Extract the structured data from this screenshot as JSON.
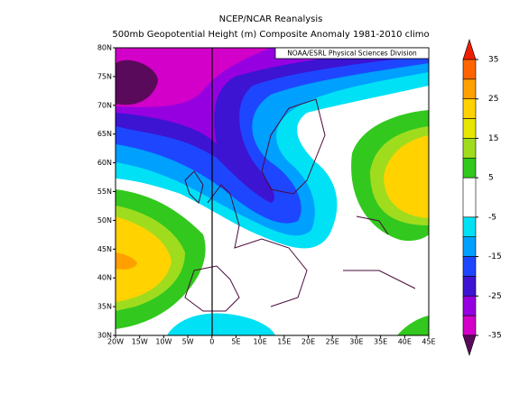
{
  "header": {
    "title": "NCEP/NCAR Reanalysis",
    "subtitle": "500mb Geopotential Height (m) Composite Anomaly 1981-2010 climo"
  },
  "credit": "NOAA/ESRL Physical Sciences Division",
  "map": {
    "lon_labels": [
      "20W",
      "15W",
      "10W",
      "5W",
      "0",
      "5E",
      "10E",
      "15E",
      "20E",
      "25E",
      "30E",
      "35E",
      "40E",
      "45E"
    ],
    "lat_labels": [
      "80N",
      "75N",
      "70N",
      "65N",
      "60N",
      "55N",
      "50N",
      "45N",
      "40N",
      "35N",
      "30N"
    ]
  },
  "colorbar": {
    "ticks": [
      35,
      25,
      15,
      5,
      -5,
      -15,
      -25,
      -35
    ],
    "colors": [
      "#f01e00",
      "#ff6400",
      "#ffa000",
      "#ffd200",
      "#e6e600",
      "#a0dc1e",
      "#32c81e",
      "#ffffff",
      "#00e1f5",
      "#00a0ff",
      "#1e46ff",
      "#3c14d2",
      "#9600e1",
      "#d200c8",
      "#5a0a5a"
    ]
  }
}
